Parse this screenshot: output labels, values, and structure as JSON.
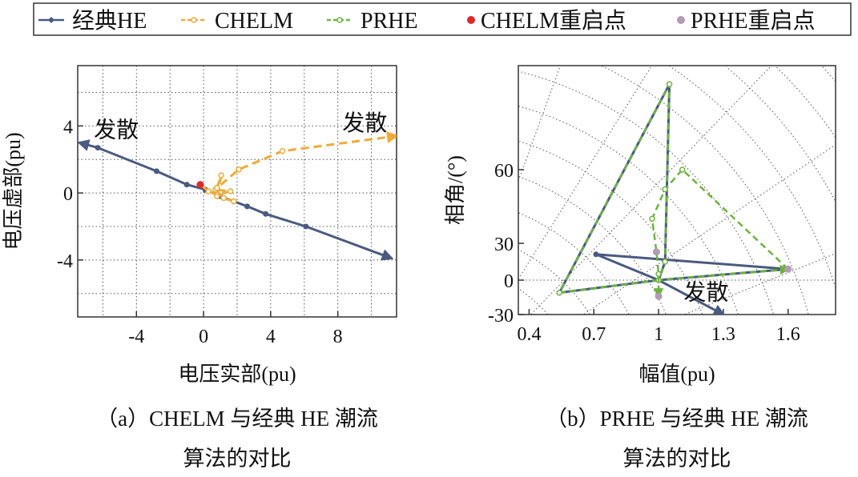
{
  "legend": {
    "items": [
      {
        "label": "经典HE",
        "color": "#4a5a80",
        "style": "solid",
        "marker": "diamond"
      },
      {
        "label": "CHELM",
        "color": "#f0aa35",
        "style": "dashed",
        "marker": "open-circle"
      },
      {
        "label": "PRHE",
        "color": "#6cb33f",
        "style": "dashed",
        "marker": "open-circle"
      },
      {
        "label": "CHELM重启点",
        "color": "#e02a2a",
        "style": "none",
        "marker": "dot"
      },
      {
        "label": "PRHE重启点",
        "color": "#b49ab4",
        "style": "none",
        "marker": "dot"
      }
    ],
    "placement": "top"
  },
  "chart_data": [
    {
      "type": "line",
      "xlabel": "电压实部(pu)",
      "ylabel": "电压虚部(pu)",
      "xlim": [
        -7.5,
        11.5
      ],
      "ylim": [
        -7.4,
        7.6
      ],
      "xticks": [
        -4,
        0,
        4,
        8
      ],
      "yticks": [
        4,
        0,
        -4
      ],
      "grid": true,
      "annotations": [
        {
          "text": "发散",
          "x": -5.2,
          "y": 3.8
        },
        {
          "text": "发散",
          "x": 9.6,
          "y": 4.2
        }
      ],
      "caption": [
        "（a）CHELM 与经典 HE 潮流",
        "算法的对比"
      ],
      "series": [
        {
          "name": "经典HE",
          "points": [
            [
              0.1,
              0.2
            ],
            [
              1,
              -0.2
            ],
            [
              2.6,
              -0.8
            ],
            [
              3.7,
              -1.25
            ],
            [
              6.1,
              -2.0
            ],
            [
              11.2,
              -3.9
            ]
          ]
        },
        {
          "name": "经典HE",
          "points": [
            [
              0.1,
              0.2
            ],
            [
              -1,
              0.5
            ],
            [
              -2.8,
              1.3
            ],
            [
              -6.3,
              2.7
            ],
            [
              -7.4,
              3.0
            ]
          ]
        },
        {
          "name": "CHELM",
          "points": [
            [
              -0.2,
              0.5
            ],
            [
              0.3,
              0.1
            ],
            [
              0.8,
              -0.1
            ],
            [
              1.6,
              0.1
            ],
            [
              0.7,
              0.2
            ],
            [
              1.2,
              -0.3
            ],
            [
              1.8,
              -0.5
            ],
            [
              0.8,
              -0.2
            ],
            [
              1.05,
              1.05
            ],
            [
              0.8,
              0.3
            ],
            [
              2.1,
              1.4
            ],
            [
              4.7,
              2.5
            ],
            [
              11.5,
              3.4
            ]
          ]
        },
        {
          "name": "CHELM重启点",
          "points": [
            [
              -0.2,
              0.5
            ]
          ]
        }
      ]
    },
    {
      "type": "line",
      "xlabel": "幅值(pu)",
      "ylabel": "相角/(°)",
      "xlim": [
        0.35,
        1.82
      ],
      "xticks": [
        0.4,
        0.7,
        1.0,
        1.3,
        1.6
      ],
      "yticks": [
        60,
        30,
        0,
        -30
      ],
      "grid": true,
      "annotations": [
        {
          "text": "发散",
          "x": 1.22,
          "y": -10
        }
      ],
      "caption": [
        "（b）PRHE 与经典 HE 潮流",
        "算法的对比"
      ],
      "series": [
        {
          "name": "经典HE",
          "points": [
            [
              1.0,
              0
            ],
            [
              0.54,
              -11
            ],
            [
              1.05,
              95
            ],
            [
              1.03,
              15
            ],
            [
              1.0,
              0
            ],
            [
              1.6,
              9
            ],
            [
              0.71,
              21
            ],
            [
              1.0,
              0
            ],
            [
              1.3,
              -30
            ]
          ]
        },
        {
          "name": "PRHE",
          "points": [
            [
              1.0,
              0
            ],
            [
              0.54,
              -11
            ],
            [
              1.05,
              95
            ],
            [
              1.03,
              15
            ],
            [
              1.0,
              0
            ],
            [
              1.6,
              9
            ]
          ]
        },
        {
          "name": "PRHE",
          "points": [
            [
              1.6,
              9
            ],
            [
              1.11,
              60
            ],
            [
              1.03,
              52
            ],
            [
              0.97,
              40
            ],
            [
              0.99,
              23
            ],
            [
              1.0,
              5
            ],
            [
              1.0,
              -14
            ]
          ]
        },
        {
          "name": "PRHE重启点",
          "points": [
            [
              0.99,
              23
            ],
            [
              1.6,
              9
            ],
            [
              1.0,
              -14
            ]
          ]
        }
      ]
    }
  ]
}
